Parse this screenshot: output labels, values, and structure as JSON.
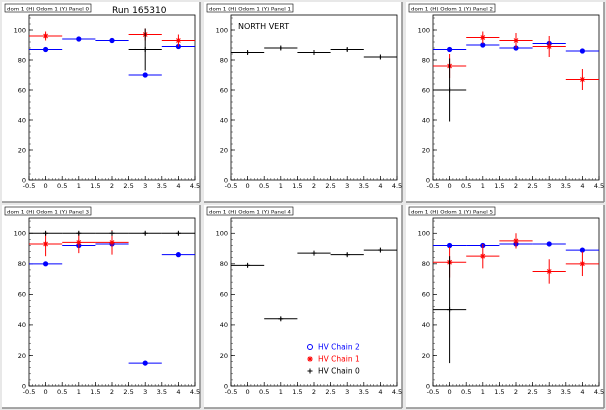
{
  "header": {
    "run_label": "Run 165310"
  },
  "legend": [
    {
      "label": "HV Chain 2",
      "color": "#0000ff",
      "marker": "circle"
    },
    {
      "label": "HV Chain 1",
      "color": "#ff0000",
      "marker": "star"
    },
    {
      "label": "HV Chain 0",
      "color": "#000000",
      "marker": "plus"
    }
  ],
  "chart_data": [
    {
      "type": "scatter",
      "title": "dom 1 (H) Odom 1 (Y) Panel 0",
      "xlim": [
        -0.5,
        4.5
      ],
      "ylim": [
        0,
        110
      ],
      "xticks": [
        "-0.5",
        "0",
        "0.5",
        "1",
        "1.5",
        "2",
        "2.5",
        "3",
        "3.5",
        "4",
        "4.5"
      ],
      "yticks": [
        "0",
        "20",
        "40",
        "60",
        "80",
        "100"
      ],
      "series": [
        {
          "name": "HV Chain 2",
          "color": "#0000ff",
          "points": [
            {
              "x": 0,
              "y": 87,
              "ex": 0.5,
              "ey": 1
            },
            {
              "x": 1,
              "y": 94,
              "ex": 0.5,
              "ey": 1
            },
            {
              "x": 2,
              "y": 93,
              "ex": 0.5,
              "ey": 1
            },
            {
              "x": 3,
              "y": 70,
              "ex": 0.5,
              "ey": 1
            },
            {
              "x": 4,
              "y": 89,
              "ex": 0.5,
              "ey": 1
            }
          ]
        },
        {
          "name": "HV Chain 1",
          "color": "#ff0000",
          "points": [
            {
              "x": 0,
              "y": 96,
              "ex": 0.5,
              "ey": 3
            },
            {
              "x": 3,
              "y": 97,
              "ex": 0.5,
              "ey": 4
            },
            {
              "x": 4,
              "y": 93,
              "ex": 0.5,
              "ey": 4
            }
          ]
        },
        {
          "name": "HV Chain 0",
          "color": "#000000",
          "points": [
            {
              "x": 3,
              "y": 87,
              "ex": 0.5,
              "ey": 14
            }
          ]
        }
      ]
    },
    {
      "type": "scatter",
      "title": "dom 1 (H) Odom 1 (Y) Panel 1",
      "annotation": "NORTH VERT",
      "xlim": [
        -0.5,
        4.5
      ],
      "ylim": [
        0,
        110
      ],
      "xticks": [
        "-0.5",
        "0",
        "0.5",
        "1",
        "1.5",
        "2",
        "2.5",
        "3",
        "3.5",
        "4",
        "4.5"
      ],
      "yticks": [
        "0",
        "20",
        "40",
        "60",
        "80",
        "100"
      ],
      "series": [
        {
          "name": "HV Chain 0",
          "color": "#000000",
          "points": [
            {
              "x": 0,
              "y": 85,
              "ex": 0.5,
              "ey": 1
            },
            {
              "x": 1,
              "y": 88,
              "ex": 0.5,
              "ey": 1
            },
            {
              "x": 2,
              "y": 85,
              "ex": 0.5,
              "ey": 1
            },
            {
              "x": 3,
              "y": 87,
              "ex": 0.5,
              "ey": 1
            },
            {
              "x": 4,
              "y": 82,
              "ex": 0.5,
              "ey": 1
            }
          ]
        }
      ]
    },
    {
      "type": "scatter",
      "title": "dom 1 (H) Odom 1 (Y) Panel 2",
      "xlim": [
        -0.5,
        4.5
      ],
      "ylim": [
        0,
        110
      ],
      "xticks": [
        "-0.5",
        "0",
        "0.5",
        "1",
        "1.5",
        "2",
        "2.5",
        "3",
        "3.5",
        "4",
        "4.5"
      ],
      "yticks": [
        "0",
        "20",
        "40",
        "60",
        "80",
        "100"
      ],
      "series": [
        {
          "name": "HV Chain 2",
          "color": "#0000ff",
          "points": [
            {
              "x": 0,
              "y": 87,
              "ex": 0.5,
              "ey": 1
            },
            {
              "x": 1,
              "y": 90,
              "ex": 0.5,
              "ey": 1
            },
            {
              "x": 2,
              "y": 88,
              "ex": 0.5,
              "ey": 1
            },
            {
              "x": 3,
              "y": 91,
              "ex": 0.5,
              "ey": 1
            },
            {
              "x": 4,
              "y": 86,
              "ex": 0.5,
              "ey": 1
            }
          ]
        },
        {
          "name": "HV Chain 1",
          "color": "#ff0000",
          "points": [
            {
              "x": 0,
              "y": 76,
              "ex": 0.5,
              "ey": 8
            },
            {
              "x": 1,
              "y": 95,
              "ex": 0.5,
              "ey": 4
            },
            {
              "x": 2,
              "y": 93,
              "ex": 0.5,
              "ey": 5
            },
            {
              "x": 3,
              "y": 89,
              "ex": 0.5,
              "ey": 7
            },
            {
              "x": 4,
              "y": 67,
              "ex": 0.5,
              "ey": 7
            }
          ]
        },
        {
          "name": "HV Chain 0",
          "color": "#000000",
          "points": [
            {
              "x": 0,
              "y": 60,
              "ex": 0.5,
              "ey": 21
            }
          ]
        }
      ]
    },
    {
      "type": "scatter",
      "title": "dom 1 (H) Odom 1 (Y) Panel 3",
      "xlim": [
        -0.5,
        4.5
      ],
      "ylim": [
        0,
        110
      ],
      "xticks": [
        "-0.5",
        "0",
        "0.5",
        "1",
        "1.5",
        "2",
        "2.5",
        "3",
        "3.5",
        "4",
        "4.5"
      ],
      "yticks": [
        "0",
        "20",
        "40",
        "60",
        "80",
        "100"
      ],
      "series": [
        {
          "name": "HV Chain 2",
          "color": "#0000ff",
          "points": [
            {
              "x": 0,
              "y": 80,
              "ex": 0.5,
              "ey": 1
            },
            {
              "x": 1,
              "y": 92,
              "ex": 0.5,
              "ey": 1
            },
            {
              "x": 2,
              "y": 93,
              "ex": 0.5,
              "ey": 1
            },
            {
              "x": 3,
              "y": 15,
              "ex": 0.5,
              "ey": 1
            },
            {
              "x": 4,
              "y": 86,
              "ex": 0.5,
              "ey": 1
            }
          ]
        },
        {
          "name": "HV Chain 1",
          "color": "#ff0000",
          "points": [
            {
              "x": 0,
              "y": 93,
              "ex": 0.5,
              "ey": 8
            },
            {
              "x": 1,
              "y": 94,
              "ex": 0.5,
              "ey": 7
            },
            {
              "x": 2,
              "y": 94,
              "ex": 0.5,
              "ey": 8
            }
          ]
        },
        {
          "name": "HV Chain 0",
          "color": "#000000",
          "points": [
            {
              "x": 0,
              "y": 100,
              "ex": 0.5,
              "ey": 1
            },
            {
              "x": 1,
              "y": 100,
              "ex": 0.5,
              "ey": 1
            },
            {
              "x": 2,
              "y": 100,
              "ex": 0.5,
              "ey": 1
            },
            {
              "x": 3,
              "y": 100,
              "ex": 0.5,
              "ey": 1
            },
            {
              "x": 4,
              "y": 100,
              "ex": 0.5,
              "ey": 1
            }
          ]
        }
      ]
    },
    {
      "type": "scatter",
      "title": "dom 1 (H) Odom 1 (Y) Panel 4",
      "xlim": [
        -0.5,
        4.5
      ],
      "ylim": [
        0,
        110
      ],
      "xticks": [
        "-0.5",
        "0",
        "0.5",
        "1",
        "1.5",
        "2",
        "2.5",
        "3",
        "3.5",
        "4",
        "4.5"
      ],
      "yticks": [
        "0",
        "20",
        "40",
        "60",
        "80",
        "100"
      ],
      "series": [
        {
          "name": "HV Chain 0",
          "color": "#000000",
          "points": [
            {
              "x": 0,
              "y": 79,
              "ex": 0.5,
              "ey": 1
            },
            {
              "x": 1,
              "y": 44,
              "ex": 0.5,
              "ey": 1
            },
            {
              "x": 2,
              "y": 87,
              "ex": 0.5,
              "ey": 1
            },
            {
              "x": 3,
              "y": 86,
              "ex": 0.5,
              "ey": 1
            },
            {
              "x": 4,
              "y": 89,
              "ex": 0.5,
              "ey": 1
            }
          ]
        }
      ]
    },
    {
      "type": "scatter",
      "title": "dom 1 (H) Odom 1 (Y) Panel 5",
      "xlim": [
        -0.5,
        4.5
      ],
      "ylim": [
        0,
        110
      ],
      "xticks": [
        "-0.5",
        "0",
        "0.5",
        "1",
        "1.5",
        "2",
        "2.5",
        "3",
        "3.5",
        "4",
        "4.5"
      ],
      "yticks": [
        "0",
        "20",
        "40",
        "60",
        "80",
        "100"
      ],
      "series": [
        {
          "name": "HV Chain 2",
          "color": "#0000ff",
          "points": [
            {
              "x": 0,
              "y": 92,
              "ex": 0.5,
              "ey": 1
            },
            {
              "x": 1,
              "y": 92,
              "ex": 0.5,
              "ey": 1
            },
            {
              "x": 2,
              "y": 93,
              "ex": 0.5,
              "ey": 1
            },
            {
              "x": 3,
              "y": 93,
              "ex": 0.5,
              "ey": 1
            },
            {
              "x": 4,
              "y": 89,
              "ex": 0.5,
              "ey": 1
            }
          ]
        },
        {
          "name": "HV Chain 1",
          "color": "#ff0000",
          "points": [
            {
              "x": 0,
              "y": 81,
              "ex": 0.5,
              "ey": 10
            },
            {
              "x": 1,
              "y": 85,
              "ex": 0.5,
              "ey": 8
            },
            {
              "x": 2,
              "y": 95,
              "ex": 0.5,
              "ey": 5
            },
            {
              "x": 3,
              "y": 75,
              "ex": 0.5,
              "ey": 8
            },
            {
              "x": 4,
              "y": 80,
              "ex": 0.5,
              "ey": 8
            }
          ]
        },
        {
          "name": "HV Chain 0",
          "color": "#000000",
          "points": [
            {
              "x": 0,
              "y": 50,
              "ex": 0.5,
              "ey": 35
            }
          ]
        }
      ]
    }
  ]
}
